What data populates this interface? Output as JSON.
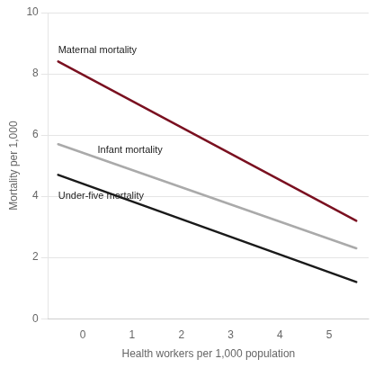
{
  "chart_data": {
    "type": "line",
    "xlabel": "Health workers per 1,000 population",
    "ylabel": "Mortality per 1,000",
    "x": [
      -0.5,
      5.55
    ],
    "series": [
      {
        "color": "#7a1020",
        "values": [
          8.4,
          3.2
        ]
      },
      {
        "color": "#aaaaaa",
        "values": [
          5.7,
          2.3
        ]
      },
      {
        "color": "#1a1a1a",
        "values": [
          4.7,
          1.2
        ]
      }
    ],
    "annotations": [
      {
        "text": "Maternal mortality",
        "x": -0.5,
        "y": 8.6
      },
      {
        "text": "Infant mortality",
        "x": 0.3,
        "y": 5.35
      },
      {
        "text": "Under-five mortality",
        "x": -0.5,
        "y": 3.85
      }
    ],
    "xlim": [
      -0.7,
      5.8
    ],
    "xticks": [
      0,
      1,
      2,
      3,
      4,
      5
    ],
    "ylim": [
      0,
      10
    ],
    "yticks": [
      0,
      2,
      4,
      6,
      8,
      10
    ],
    "grid": true
  }
}
